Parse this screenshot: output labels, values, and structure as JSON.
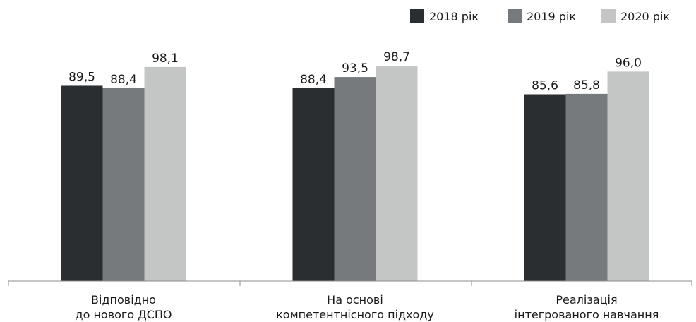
{
  "chart_data": {
    "type": "bar",
    "categories": [
      [
        "Відповідно",
        "до нового ДСПО"
      ],
      [
        "На основі",
        "компетентнісного підходу"
      ],
      [
        "Реалізація",
        "інтегрованого навчання"
      ]
    ],
    "series": [
      {
        "name": "2018 рік",
        "color": "#2b2e31",
        "values": [
          89.5,
          88.4,
          85.6
        ],
        "labels": [
          "89,5",
          "88,4",
          "85,6"
        ]
      },
      {
        "name": "2019 рік",
        "color": "#767a7c",
        "values": [
          88.4,
          93.5,
          85.8
        ],
        "labels": [
          "88,4",
          "93,5",
          "85,8"
        ]
      },
      {
        "name": "2020 рік",
        "color": "#c4c5c5",
        "values": [
          98.1,
          98.7,
          96.0
        ],
        "labels": [
          "98,1",
          "98,7",
          "96,0"
        ]
      }
    ],
    "ylim": [
      0,
      100
    ],
    "legend": "top-right",
    "grid": false
  }
}
